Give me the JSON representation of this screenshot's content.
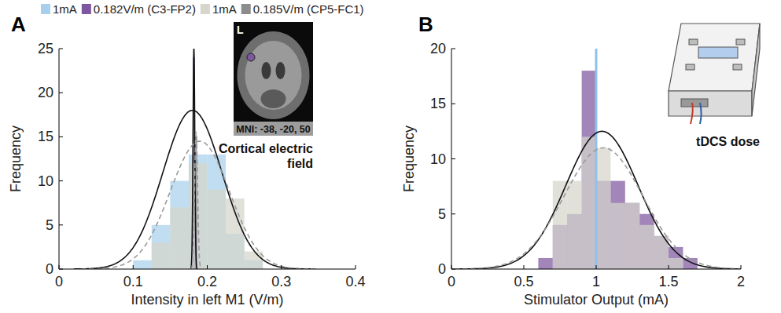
{
  "chart_data": [
    {
      "type": "histogram",
      "panel": "A",
      "xlabel": "Intensity in left M1 (V/m)",
      "ylabel": "Frequency",
      "xlim": [
        0,
        0.4
      ],
      "xticks": [
        0,
        0.1,
        0.2,
        0.3,
        0.4
      ],
      "ylim": [
        0,
        25
      ],
      "yticks": [
        0,
        5,
        10,
        15,
        20,
        25
      ],
      "legend": "top",
      "series": [
        {
          "name": "1mA",
          "color": "#a8d0ec",
          "bins": [
            0.1,
            0.125,
            0.15,
            0.175,
            0.2,
            0.225,
            0.25,
            0.275
          ],
          "values": [
            1,
            5,
            10,
            13,
            13,
            4,
            1
          ],
          "normal_fit": {
            "mean": 0.18,
            "sd": 0.04,
            "peak": 18
          },
          "line_style": "solid"
        },
        {
          "name": "0.182V/m (C3-FP2)",
          "color": "#7e57a0",
          "bins": [
            0.1805,
            0.1835
          ],
          "values": [
            24
          ],
          "normal_fit": {
            "mean": 0.182,
            "sd": 0.0012,
            "peak": 25
          },
          "line_style": "solid"
        },
        {
          "name": "1mA",
          "color": "#d6d6cc",
          "bins": [
            0.125,
            0.15,
            0.175,
            0.2,
            0.225,
            0.25,
            0.275
          ],
          "values": [
            3,
            7,
            12,
            9,
            8,
            2
          ],
          "normal_fit": {
            "mean": 0.19,
            "sd": 0.04,
            "peak": 14.5
          },
          "line_style": "dashed"
        },
        {
          "name": "0.185V/m (CP5-FC1)",
          "color": "#8c8c8c",
          "bins": [
            0.1835,
            0.1865
          ],
          "values": [
            15
          ],
          "normal_fit": {
            "mean": 0.185,
            "sd": 0.002,
            "peak": 15.5
          },
          "line_style": "dashed"
        }
      ],
      "inset": {
        "corner_label": "L",
        "caption": "MNI: -38, -20, 50",
        "title": "Cortical electric field"
      }
    },
    {
      "type": "histogram",
      "panel": "B",
      "xlabel": "Stimulator Output (mA)",
      "ylabel": "Frequency",
      "xlim": [
        0,
        2
      ],
      "xticks": [
        0,
        0.5,
        1,
        1.5,
        2
      ],
      "ylim": [
        0,
        20
      ],
      "yticks": [
        0,
        5,
        10,
        15,
        20
      ],
      "series": [
        {
          "color": "#7e57a0",
          "bins": [
            0.6,
            0.7,
            0.8,
            0.9,
            1.0,
            1.1,
            1.2,
            1.3,
            1.4,
            1.5,
            1.6,
            1.7
          ],
          "values": [
            1,
            4,
            5,
            18,
            8,
            8,
            6,
            5,
            3,
            2,
            1
          ],
          "normal_fit": {
            "mean": 1.04,
            "sd": 0.25,
            "peak": 12.5
          },
          "line_style": "solid"
        },
        {
          "color": "#d6d6cc",
          "bins": [
            0.7,
            0.8,
            0.9,
            1.0,
            1.1,
            1.2,
            1.3,
            1.4,
            1.5,
            1.6
          ],
          "values": [
            8,
            8,
            12,
            11,
            6,
            6,
            4,
            3,
            1
          ],
          "normal_fit": {
            "mean": 1.05,
            "sd": 0.27,
            "peak": 11
          },
          "line_style": "dashed"
        },
        {
          "type": "vline",
          "color": "#8ec2ea",
          "values": [
            1
          ]
        }
      ],
      "inset": {
        "title": "tDCS dose"
      }
    }
  ]
}
